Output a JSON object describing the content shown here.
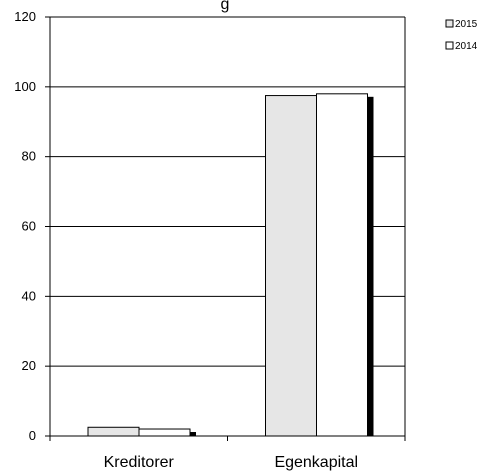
{
  "chart_data": {
    "type": "bar",
    "title": "g",
    "categories": [
      "Kreditorer",
      "Egenkapital"
    ],
    "series": [
      {
        "name": "2015",
        "values": [
          2.5,
          97.5
        ],
        "color": "#e6e6e6"
      },
      {
        "name": "2014",
        "values": [
          2.0,
          98.0
        ],
        "color": "#ffffff"
      }
    ],
    "ylim": [
      0,
      120
    ],
    "yticks": [
      0,
      20,
      40,
      60,
      80,
      100,
      120
    ],
    "grid": true,
    "legend_position": "top-right",
    "shadow_color": "#000000"
  }
}
